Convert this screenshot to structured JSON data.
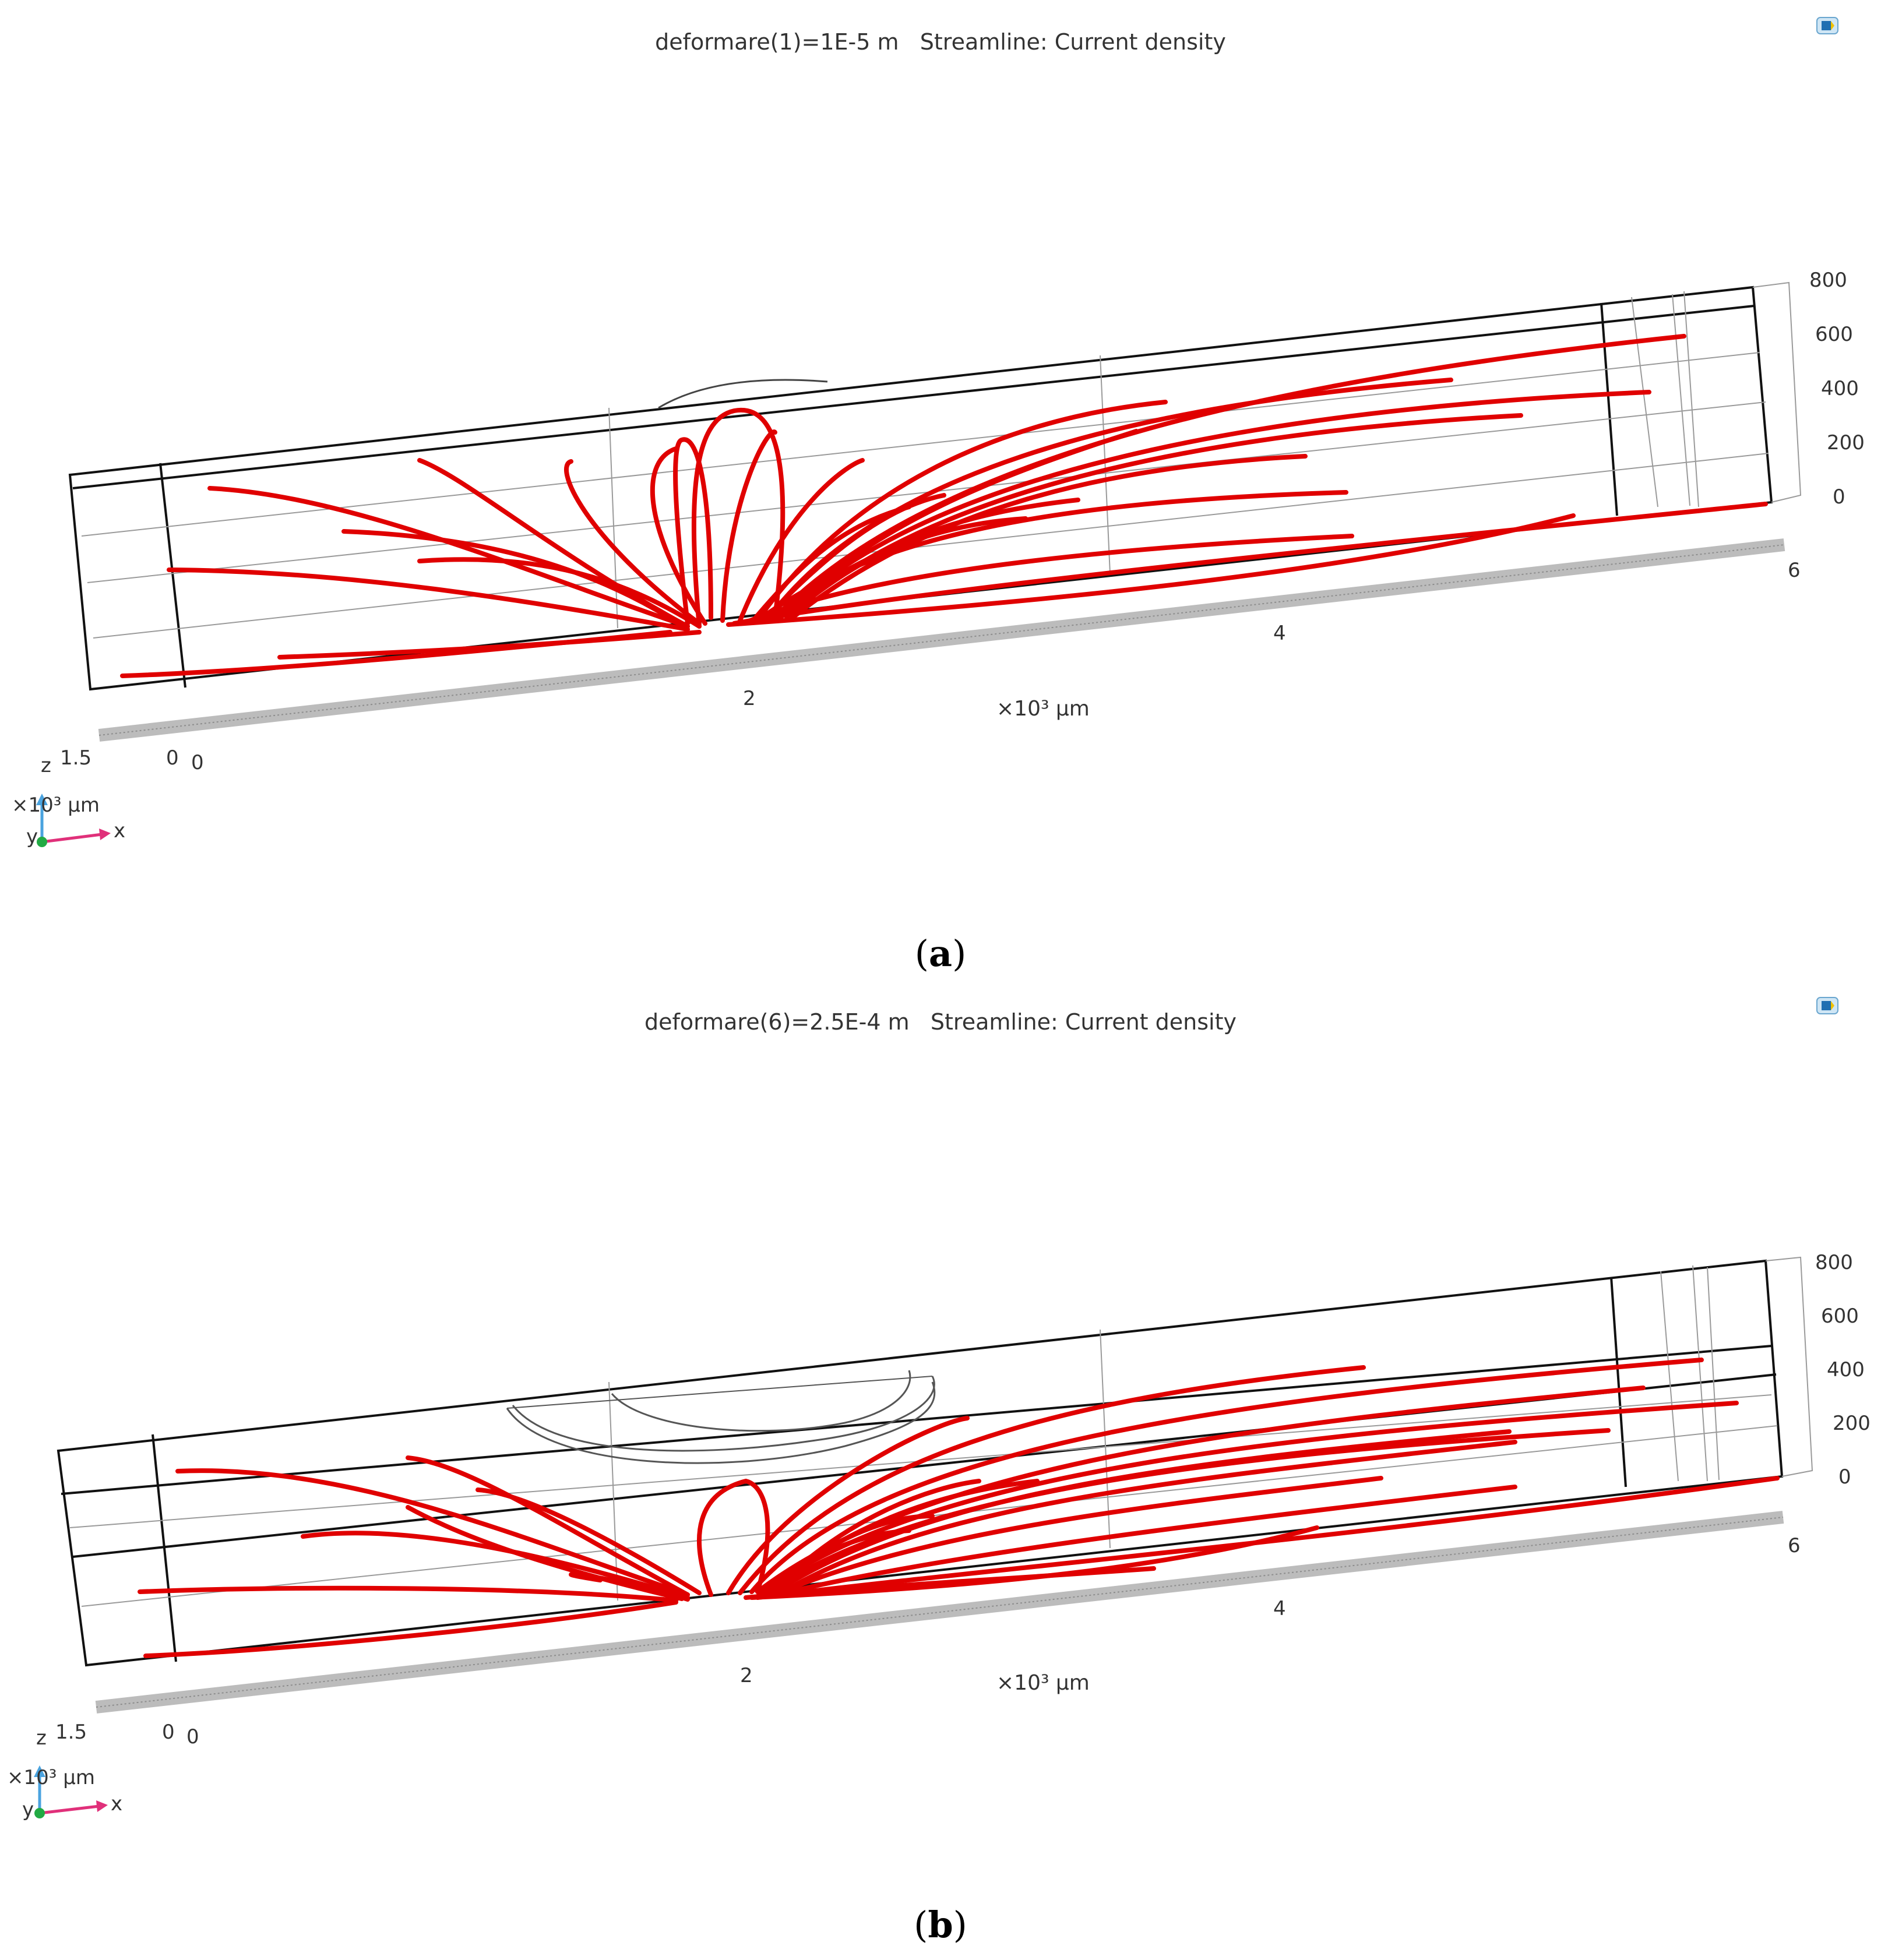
{
  "colors": {
    "streamline": "#e00000",
    "frame": "#111111",
    "grid": "#9a9a9a"
  },
  "panels": [
    {
      "id": "a",
      "title": "deformare(1)=1E-5 m   Streamline: Current density",
      "caption_letter": "a",
      "z_ticks": [
        "800",
        "600",
        "400",
        "200",
        "0"
      ],
      "x_ticks": [
        "2",
        "4",
        "6"
      ],
      "x_unit": "×10³ μm",
      "axis_small_labels": {
        "z_max": "1.5",
        "zero_a": "0",
        "zero_b": "0"
      },
      "triad": {
        "z": "z",
        "y": "y",
        "x": "x",
        "unit": "×10³ μm"
      },
      "icon": "comsol-logo-icon"
    },
    {
      "id": "b",
      "title": "deformare(6)=2.5E-4 m   Streamline: Current density",
      "caption_letter": "b",
      "z_ticks": [
        "800",
        "600",
        "400",
        "200",
        "0"
      ],
      "x_ticks": [
        "2",
        "4",
        "6"
      ],
      "x_unit": "×10³ μm",
      "axis_small_labels": {
        "z_max": "1.5",
        "zero_a": "0",
        "zero_b": "0"
      },
      "triad": {
        "z": "z",
        "y": "y",
        "x": "x",
        "unit": "×10³ μm"
      },
      "icon": "comsol-logo-icon"
    }
  ]
}
